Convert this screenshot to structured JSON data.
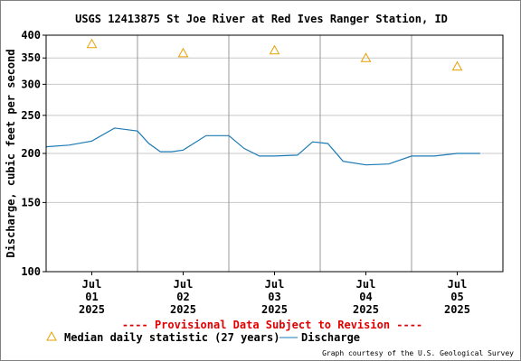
{
  "chart_data": {
    "type": "line",
    "title": "USGS 12413875 St Joe River at Red Ives Ranger Station, ID",
    "ylabel": "Discharge, cubic feet per second",
    "yscale": "log",
    "ylim": [
      100,
      400
    ],
    "yticks": [
      100,
      150,
      200,
      250,
      300,
      350,
      400
    ],
    "xlim": [
      "2025-06-30T12:00",
      "2025-07-05T12:00"
    ],
    "xticks": [
      {
        "line1": "Jul",
        "line2": "01",
        "line3": "2025"
      },
      {
        "line1": "Jul",
        "line2": "02",
        "line3": "2025"
      },
      {
        "line1": "Jul",
        "line2": "03",
        "line3": "2025"
      },
      {
        "line1": "Jul",
        "line2": "04",
        "line3": "2025"
      },
      {
        "line1": "Jul",
        "line2": "05",
        "line3": "2025"
      }
    ],
    "grid": true,
    "series": [
      {
        "name": "Median daily statistic (27 years)",
        "marker": "triangle",
        "color": "#e8a000",
        "x": [
          "2025-07-01",
          "2025-07-02",
          "2025-07-03",
          "2025-07-04",
          "2025-07-05"
        ],
        "y": [
          380,
          360,
          366,
          350,
          333
        ]
      },
      {
        "name": "Discharge",
        "marker": "line",
        "color": "#1a7ab5",
        "x": [
          "2025-06-30T12:00",
          "2025-06-30T18:00",
          "2025-07-01T00:00",
          "2025-07-01T06:00",
          "2025-07-01T12:00",
          "2025-07-01T15:00",
          "2025-07-01T18:00",
          "2025-07-01T21:00",
          "2025-07-02T00:00",
          "2025-07-02T06:00",
          "2025-07-02T12:00",
          "2025-07-02T16:00",
          "2025-07-02T20:00",
          "2025-07-03T00:00",
          "2025-07-03T06:00",
          "2025-07-03T10:00",
          "2025-07-03T14:00",
          "2025-07-03T18:00",
          "2025-07-04T00:00",
          "2025-07-04T06:00",
          "2025-07-04T12:00",
          "2025-07-04T18:00",
          "2025-07-05T00:00",
          "2025-07-05T06:00"
        ],
        "y": [
          208,
          210,
          215,
          232,
          228,
          212,
          202,
          202,
          204,
          222,
          222,
          206,
          197,
          197,
          198,
          214,
          212,
          191,
          187,
          188,
          197,
          197,
          200,
          200
        ]
      }
    ]
  },
  "footer": {
    "provisional": "---- Provisional Data Subject to Revision ----",
    "credit": "Graph courtesy of the U.S. Geological Survey"
  },
  "colors": {
    "provisional": "#e00000",
    "grid": "#c8c8c8",
    "axis": "#000000"
  }
}
